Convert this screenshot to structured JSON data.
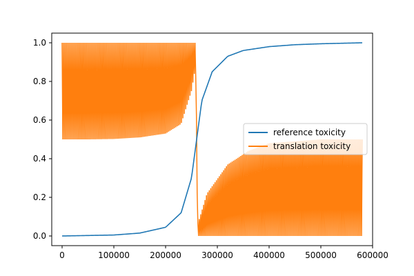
{
  "chart_data": {
    "type": "line",
    "xlim": [
      -20000,
      600000
    ],
    "ylim": [
      -0.05,
      1.05
    ],
    "x_ticks": [
      0,
      100000,
      200000,
      300000,
      400000,
      500000,
      600000
    ],
    "x_tick_labels": [
      "0",
      "100000",
      "200000",
      "300000",
      "400000",
      "500000",
      "600000"
    ],
    "y_ticks": [
      0.0,
      0.2,
      0.4,
      0.6,
      0.8,
      1.0
    ],
    "y_tick_labels": [
      "0.0",
      "0.2",
      "0.4",
      "0.6",
      "0.8",
      "1.0"
    ],
    "grid": false,
    "legend": {
      "placement": "center-right",
      "entries": [
        "reference toxicity",
        "translation toxicity"
      ]
    },
    "series": [
      {
        "name": "reference toxicity",
        "color": "#1f77b4",
        "style": "smooth sigmoid",
        "x": [
          0,
          100000,
          150000,
          200000,
          230000,
          250000,
          260000,
          270000,
          290000,
          320000,
          350000,
          400000,
          450000,
          500000,
          580000
        ],
        "values": [
          0.0,
          0.005,
          0.015,
          0.045,
          0.12,
          0.3,
          0.5,
          0.7,
          0.85,
          0.93,
          0.96,
          0.98,
          0.99,
          0.995,
          1.0
        ]
      },
      {
        "name": "translation toxicity",
        "color": "#ff7f0e",
        "style": "dense oscillating band",
        "x": [
          0,
          50000,
          100000,
          150000,
          200000,
          230000,
          250000,
          258000,
          262000,
          280000,
          320000,
          360000,
          400000,
          450000,
          500000,
          580000
        ],
        "upper": [
          1.0,
          1.0,
          1.0,
          1.0,
          1.0,
          1.0,
          1.0,
          1.0,
          0.06,
          0.22,
          0.37,
          0.44,
          0.48,
          0.49,
          0.5,
          0.5
        ],
        "lower": [
          0.5,
          0.5,
          0.502,
          0.51,
          0.53,
          0.58,
          0.75,
          0.88,
          0.0,
          0.0,
          0.0,
          0.0,
          0.0,
          0.0,
          0.0,
          0.0
        ]
      }
    ]
  }
}
